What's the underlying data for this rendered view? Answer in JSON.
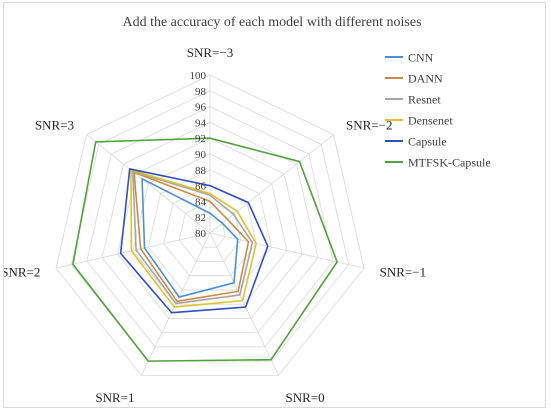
{
  "chart_data": {
    "type": "radar",
    "title": "Add the accuracy of each model with different noises",
    "categories": [
      "SNR=−3",
      "SNR=−2",
      "SNR=−1",
      "SNR=0",
      "SNR=1",
      "SNR=2",
      "SNR=3"
    ],
    "radial_range": [
      80,
      100
    ],
    "radial_ticks": [
      "80",
      "82",
      "84",
      "86",
      "88",
      "90",
      "92",
      "94",
      "96",
      "98",
      "100"
    ],
    "grid": true,
    "legend_position": "right",
    "series": [
      {
        "name": "CNN",
        "color": "#4a90d9",
        "values": [
          82.5,
          82.0,
          83.6,
          87.0,
          89.0,
          88.5,
          91.0
        ]
      },
      {
        "name": "DANN",
        "color": "#d08a48",
        "values": [
          84.0,
          82.8,
          85.0,
          88.2,
          89.6,
          89.0,
          92.3
        ]
      },
      {
        "name": "Resnet",
        "color": "#a6a6a6",
        "values": [
          84.8,
          83.8,
          85.5,
          88.7,
          89.9,
          89.6,
          92.5
        ]
      },
      {
        "name": "Densenet",
        "color": "#e2c12c",
        "values": [
          85.0,
          84.4,
          86.0,
          89.5,
          90.4,
          90.2,
          92.8
        ]
      },
      {
        "name": "Capsule",
        "color": "#2f4fc4",
        "values": [
          86.0,
          86.2,
          87.5,
          90.4,
          91.2,
          91.6,
          93.0
        ]
      },
      {
        "name": "MTFSK-Capsule",
        "color": "#4fa33a",
        "values": [
          92.0,
          94.5,
          96.5,
          97.8,
          98.0,
          97.8,
          98.5
        ]
      }
    ]
  }
}
